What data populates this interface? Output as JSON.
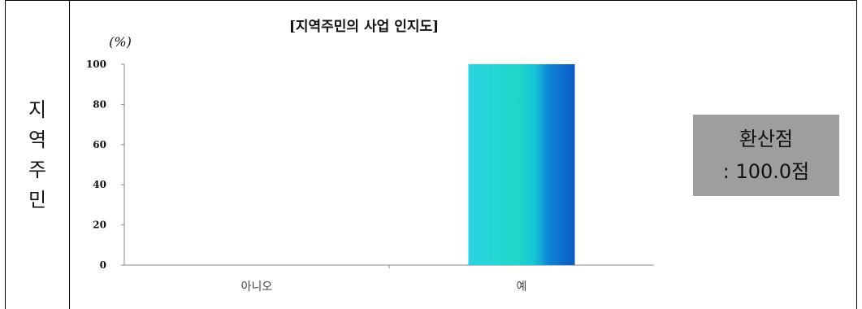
{
  "side_label": [
    "지",
    "역",
    "주",
    "민"
  ],
  "score": {
    "title": "환산점",
    "value": ": 100.0점"
  },
  "colors": {
    "bar_left": "#2ad0e0",
    "bar_mid": "#18d0b0",
    "bar_right": "#0a5cc8",
    "score_bg": "#9e9e9e"
  },
  "chart_data": {
    "type": "bar",
    "title": "[지역주민의 사업 인지도]",
    "ylabel": "(%)",
    "xlabel": "",
    "categories": [
      "아니오",
      "예"
    ],
    "values": [
      0,
      100
    ],
    "ylim": [
      0,
      100
    ],
    "yticks": [
      "0",
      "20",
      "40",
      "60",
      "80",
      "100"
    ],
    "grid": false,
    "legend": "none"
  }
}
